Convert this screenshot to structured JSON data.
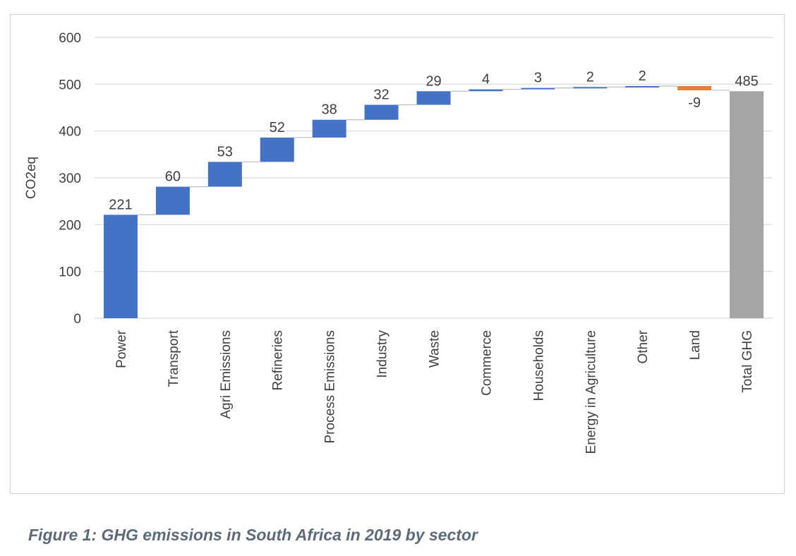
{
  "chart_data": {
    "type": "waterfall",
    "ylabel": "CO2eq",
    "xlabel": "",
    "ylim": [
      0,
      600
    ],
    "yticks": [
      0,
      100,
      200,
      300,
      400,
      500,
      600
    ],
    "categories": [
      "Power",
      "Transport",
      "Agri Emissions",
      "Refineries",
      "Process Emissions",
      "Industry",
      "Waste",
      "Commerce",
      "Households",
      "Energy in Agriculture",
      "Other",
      "Land",
      "Total GHG"
    ],
    "values": [
      221,
      60,
      53,
      52,
      38,
      32,
      29,
      4,
      3,
      2,
      2,
      -9,
      485
    ],
    "labels": [
      "221",
      "60",
      "53",
      "52",
      "38",
      "32",
      "29",
      "4",
      "3",
      "2",
      "2",
      "-9",
      "485"
    ],
    "kinds": [
      "increase",
      "increase",
      "increase",
      "increase",
      "increase",
      "increase",
      "increase",
      "increase",
      "increase",
      "increase",
      "increase",
      "decrease",
      "total"
    ],
    "colors": {
      "increase": "#4472c4",
      "decrease": "#ed7d31",
      "total": "#a5a5a5",
      "grid": "#d9d9d9",
      "connector": "#bfbfbf"
    },
    "grid": true,
    "legend": "none"
  },
  "caption": "Figure 1: GHG emissions in South Africa in 2019 by sector"
}
